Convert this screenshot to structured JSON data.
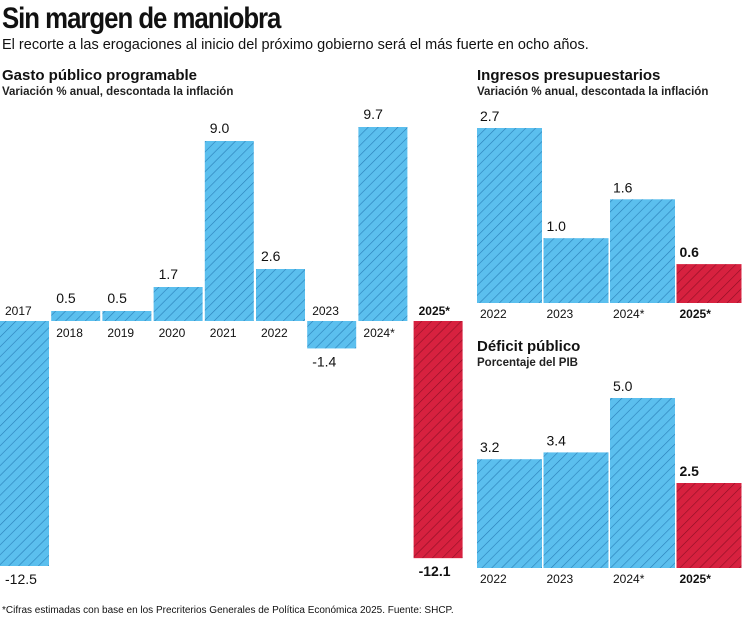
{
  "title": "Sin margen de maniobra",
  "subtitle": "El recorte a las erogaciones al inicio del próximo gobierno será el más fuerte en ocho años.",
  "footnote": "*Cifras estimadas con base en los Precriterios Generales de Política Económica 2025. Fuente: SHCP.",
  "colors": {
    "normal": "#5bbfee",
    "highlight": "#d7213f",
    "hatch_normal": "#2a7fb8",
    "hatch_highlight": "#8e0f25"
  },
  "chart_data": [
    {
      "type": "bar",
      "title": "Gasto público programable",
      "subtitle": "Variación % anual, descontada la inflación",
      "categories": [
        "2017",
        "2018",
        "2019",
        "2020",
        "2021",
        "2022",
        "2023",
        "2024*",
        "2025*"
      ],
      "value_labels": [
        "-12.5",
        "0.5",
        "0.5",
        "1.7",
        "9.0",
        "2.6",
        "-1.4",
        "9.7",
        "-12.1"
      ],
      "values": [
        -12.5,
        0.5,
        0.5,
        1.7,
        9.0,
        2.6,
        -1.4,
        9.7,
        -12.1
      ],
      "highlight": [
        false,
        false,
        false,
        false,
        false,
        false,
        false,
        false,
        true
      ],
      "ylim": [
        -12.5,
        9.7
      ]
    },
    {
      "type": "bar",
      "title": "Ingresos presupuestarios",
      "subtitle": "Variación % anual, descontada la inflación",
      "categories": [
        "2022",
        "2023",
        "2024*",
        "2025*"
      ],
      "value_labels": [
        "2.7",
        "1.0",
        "1.6",
        "0.6"
      ],
      "values": [
        2.7,
        1.0,
        1.6,
        0.6
      ],
      "highlight": [
        false,
        false,
        false,
        true
      ],
      "ylim": [
        0,
        2.7
      ]
    },
    {
      "type": "bar",
      "title": "Déficit público",
      "subtitle": "Porcentaje del PIB",
      "categories": [
        "2022",
        "2023",
        "2024*",
        "2025*"
      ],
      "value_labels": [
        "3.2",
        "3.4",
        "5.0",
        "2.5"
      ],
      "values": [
        3.2,
        3.4,
        5.0,
        2.5
      ],
      "highlight": [
        false,
        false,
        false,
        true
      ],
      "ylim": [
        0,
        5.0
      ]
    }
  ]
}
